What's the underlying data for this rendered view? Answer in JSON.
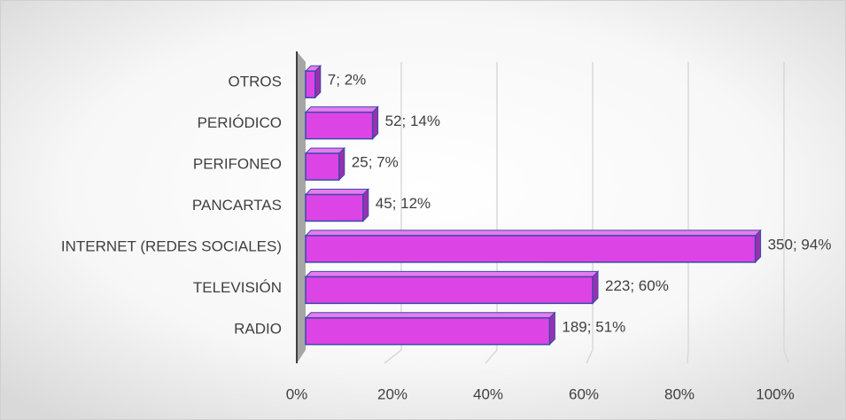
{
  "chart_data": {
    "type": "bar3d",
    "orientation": "horizontal",
    "categories": [
      "RADIO",
      "TELEVISIÓN",
      "INTERNET (REDES SOCIALES)",
      "PANCARTAS",
      "PERIFONEO",
      "PERIÓDICO",
      "OTROS"
    ],
    "values": [
      51,
      60,
      94,
      12,
      7,
      14,
      2
    ],
    "value_labels": [
      "189; 51%",
      "223; 60%",
      "350; 94%",
      "45; 12%",
      "25; 7%",
      "52; 14%",
      "7; 2%"
    ],
    "color": "#dd44e6",
    "xlim": [
      0,
      100
    ],
    "xticks": [
      {
        "value": 0,
        "label": "0%"
      },
      {
        "value": 20,
        "label": "20%"
      },
      {
        "value": 40,
        "label": "40%"
      },
      {
        "value": 60,
        "label": "60%"
      },
      {
        "value": 80,
        "label": "80%"
      },
      {
        "value": 100,
        "label": "100%"
      }
    ],
    "grid": true
  }
}
